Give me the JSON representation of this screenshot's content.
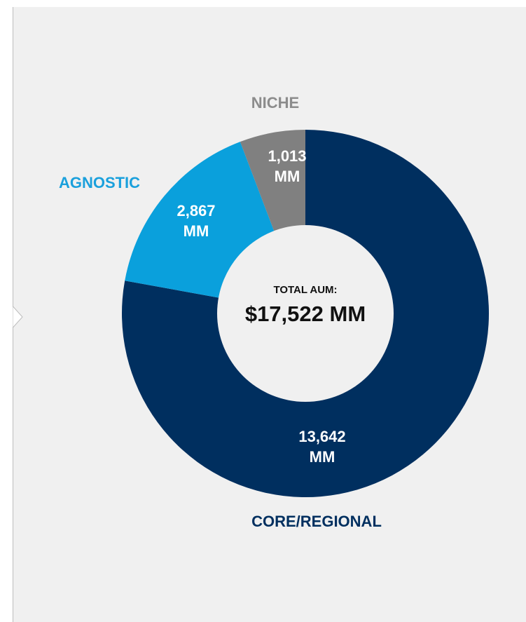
{
  "chart_data": {
    "type": "donut",
    "categories": [
      "CORE/REGIONAL",
      "AGNOSTIC",
      "NICHE"
    ],
    "values": [
      13642,
      2867,
      1013
    ],
    "value_labels": [
      "13,642 MM",
      "2,867 MM",
      "1,013 MM"
    ],
    "colors": [
      "#002f5f",
      "#0aa0dc",
      "#808080"
    ],
    "label_colors": [
      "#002f5f",
      "#1aa0dc",
      "#8c8c8c"
    ],
    "center_title": "TOTAL AUM:",
    "center_value": "$17,522 MM"
  }
}
